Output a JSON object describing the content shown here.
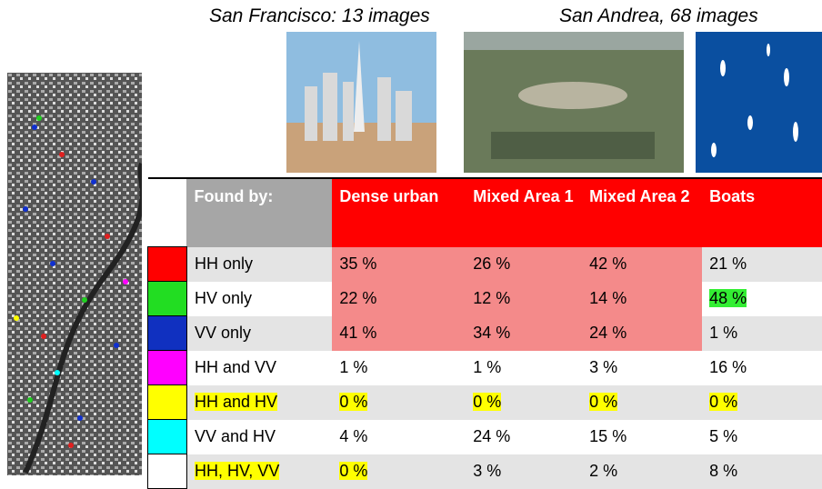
{
  "captions": [
    "San Francisco: 13 images",
    "San Andrea, 68 images"
  ],
  "table": {
    "header": [
      "Found by:",
      "Dense urban",
      "Mixed Area 1",
      "Mixed Area 2",
      "Boats"
    ],
    "rows": [
      {
        "swatch": "#ff0000",
        "cells": [
          "HH only",
          "35 %",
          "26 %",
          "42 %",
          "21 %"
        ]
      },
      {
        "swatch": "#22dd22",
        "cells": [
          "HV only",
          "22 %",
          "12 %",
          "14 %",
          "48 %"
        ]
      },
      {
        "swatch": "#1030c0",
        "cells": [
          "VV only",
          "41 %",
          "34 %",
          "24 %",
          "1 %"
        ]
      },
      {
        "swatch": "#ff00ff",
        "cells": [
          "HH and VV",
          "1 %",
          "1 %",
          "3 %",
          "16 %"
        ]
      },
      {
        "swatch": "#ffff00",
        "cells": [
          "HH and HV",
          "0 %",
          "0 %",
          "0 %",
          "0 %"
        ]
      },
      {
        "swatch": "#00ffff",
        "cells": [
          "VV and HV",
          "4 %",
          "24 %",
          "15 %",
          "5 %"
        ]
      },
      {
        "swatch": "#ffffff",
        "cells": [
          "HH, HV, VV",
          "0 %",
          "3 %",
          "2 %",
          "8 %"
        ]
      }
    ]
  }
}
